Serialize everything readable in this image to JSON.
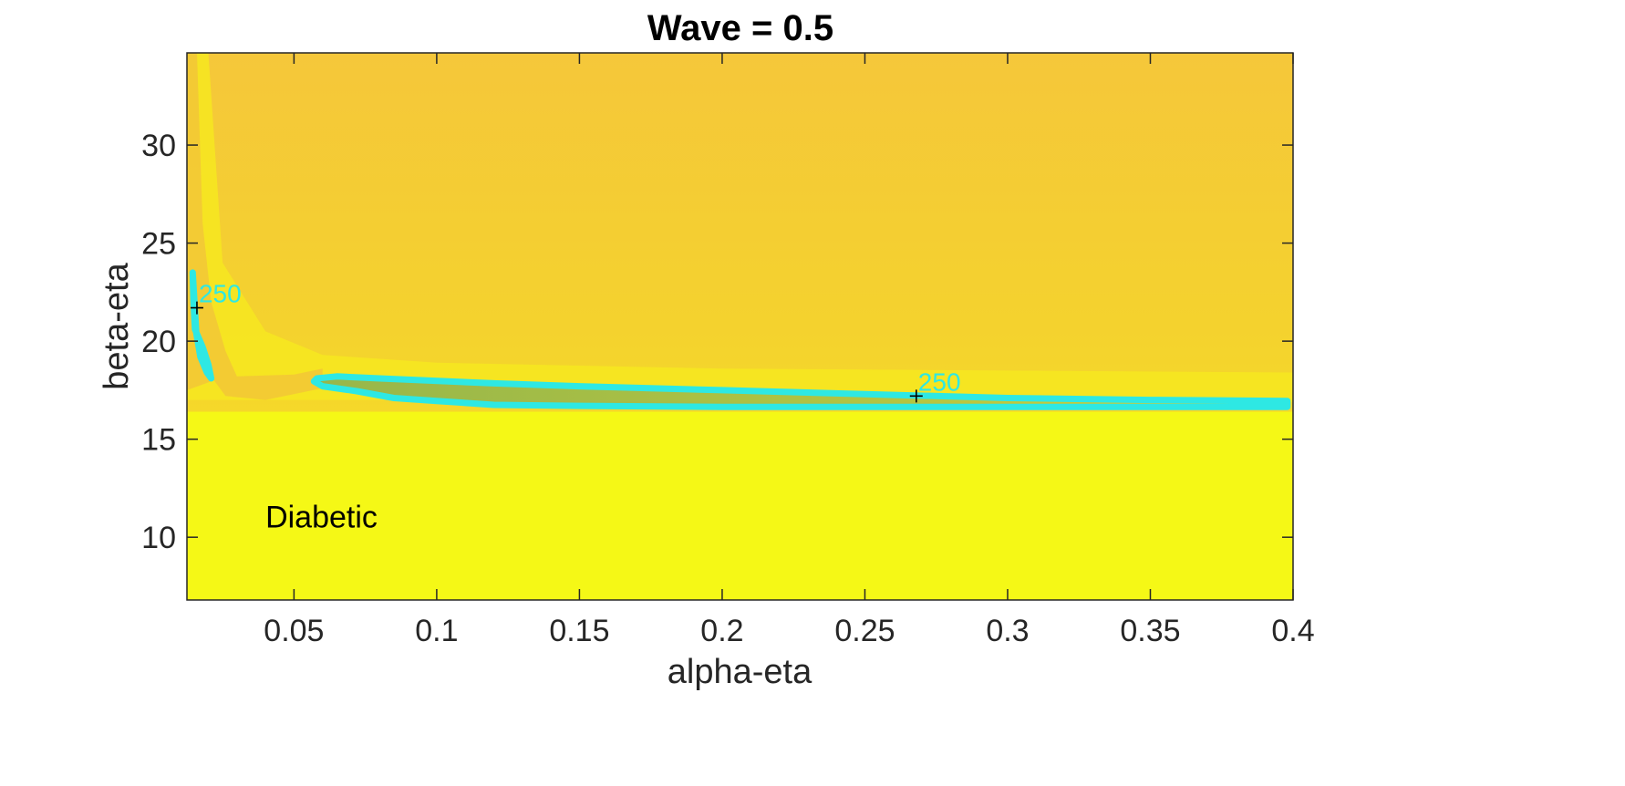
{
  "chart_data": {
    "type": "heatmap",
    "title": "Wave = 0.5",
    "xlabel": "alpha-eta",
    "ylabel": "beta-eta",
    "xlim": [
      0.0125,
      0.4
    ],
    "ylim": [
      6.8,
      34.7
    ],
    "xticks": [
      0.05,
      0.1,
      0.15,
      0.2,
      0.25,
      0.3,
      0.35,
      0.4
    ],
    "xtick_labels": [
      "0.05",
      "0.1",
      "0.15",
      "0.2",
      "0.25",
      "0.3",
      "0.35",
      "0.4"
    ],
    "yticks": [
      10,
      15,
      20,
      25,
      30
    ],
    "ytick_labels": [
      "10",
      "15",
      "20",
      "25",
      "30"
    ],
    "grid": false,
    "colors": {
      "low": "#f5f816",
      "mid": "#f4db28",
      "high": "#f5bf3a",
      "valley": "#86ae52",
      "contour": "#2ee8e3",
      "axis": "#262626"
    },
    "contours": [
      {
        "level": 250,
        "label": "250",
        "label_at": [
          0.016,
          21.7
        ],
        "points": [
          [
            0.0145,
            23.5
          ],
          [
            0.0148,
            22.0
          ],
          [
            0.0153,
            20.6
          ],
          [
            0.018,
            19.7
          ],
          [
            0.02,
            18.8
          ],
          [
            0.021,
            18.1
          ],
          [
            0.0195,
            18.4
          ],
          [
            0.0172,
            19.2
          ],
          [
            0.0158,
            20.4
          ]
        ]
      },
      {
        "level": 250,
        "label": "250",
        "label_at": [
          0.268,
          17.2
        ],
        "points": [
          [
            0.058,
            18.1
          ],
          [
            0.065,
            18.2
          ],
          [
            0.08,
            18.1
          ],
          [
            0.12,
            17.85
          ],
          [
            0.15,
            17.7
          ],
          [
            0.2,
            17.5
          ],
          [
            0.25,
            17.3
          ],
          [
            0.3,
            17.1
          ],
          [
            0.35,
            17.0
          ],
          [
            0.398,
            16.95
          ],
          [
            0.398,
            16.65
          ],
          [
            0.35,
            16.65
          ],
          [
            0.3,
            16.65
          ],
          [
            0.25,
            16.65
          ],
          [
            0.2,
            16.65
          ],
          [
            0.15,
            16.7
          ],
          [
            0.12,
            16.75
          ],
          [
            0.1,
            16.95
          ],
          [
            0.085,
            17.1
          ],
          [
            0.072,
            17.45
          ],
          [
            0.06,
            17.7
          ],
          [
            0.057,
            17.95
          ]
        ]
      }
    ],
    "annotations": [
      {
        "text": "Diabetic",
        "x": 0.04,
        "y": 10.5
      }
    ]
  }
}
